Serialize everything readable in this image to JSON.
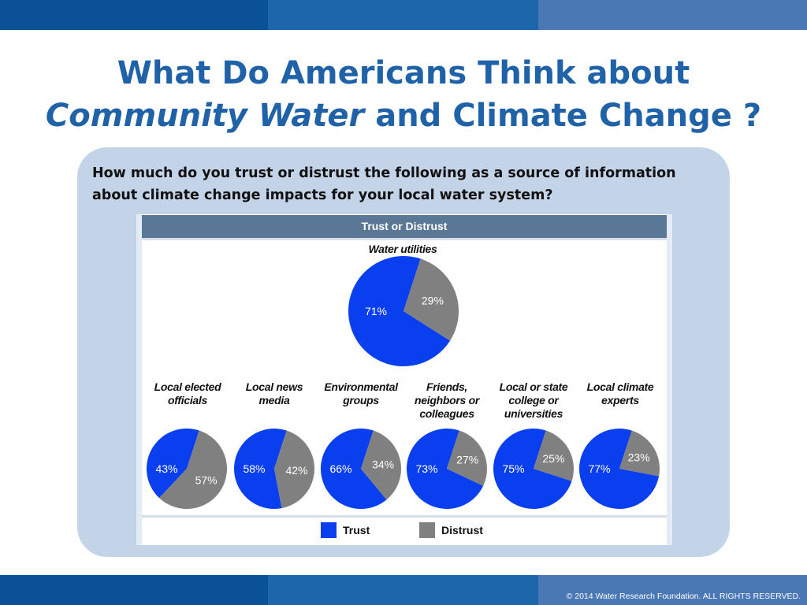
{
  "slide": {
    "title_line1": "What Do Americans Think about",
    "title_line2_italic": "Community Water",
    "title_line2_rest": " and Climate Change ?",
    "question": "How much do you trust or distrust the following as a source of information about climate change impacts for your local water system?",
    "footer": "© 2014 Water Research Foundation. ALL RIGHTS RESERVED.",
    "colors": {
      "brand_blue": "#1f62a8",
      "panel": "#c3d4e9",
      "header_band": "#5a7795"
    }
  },
  "chart_data": {
    "type": "pie",
    "title": "Trust or Distrust",
    "legend": {
      "placement": "bottom",
      "entries": [
        "Trust",
        "Distrust"
      ]
    },
    "colors": {
      "Trust": "#0a3ff0",
      "Distrust": "#808080"
    },
    "pies": [
      {
        "name": "Water utilities",
        "trust": 71,
        "distrust": 29,
        "trust_label": "71%",
        "distrust_label": "29%"
      },
      {
        "name": "Local elected officials",
        "trust": 43,
        "distrust": 57,
        "trust_label": "43%",
        "distrust_label": "57%"
      },
      {
        "name": "Local news media",
        "trust": 58,
        "distrust": 42,
        "trust_label": "58%",
        "distrust_label": "42%"
      },
      {
        "name": "Environmental groups",
        "trust": 66,
        "distrust": 34,
        "trust_label": "66%",
        "distrust_label": "34%"
      },
      {
        "name": "Friends, neighbors or colleagues",
        "trust": 73,
        "distrust": 27,
        "trust_label": "73%",
        "distrust_label": "27%"
      },
      {
        "name": "Local or state college or universities",
        "trust": 75,
        "distrust": 25,
        "trust_label": "75%",
        "distrust_label": "25%"
      },
      {
        "name": "Local climate experts",
        "trust": 77,
        "distrust": 23,
        "trust_label": "77%",
        "distrust_label": "23%"
      }
    ]
  }
}
